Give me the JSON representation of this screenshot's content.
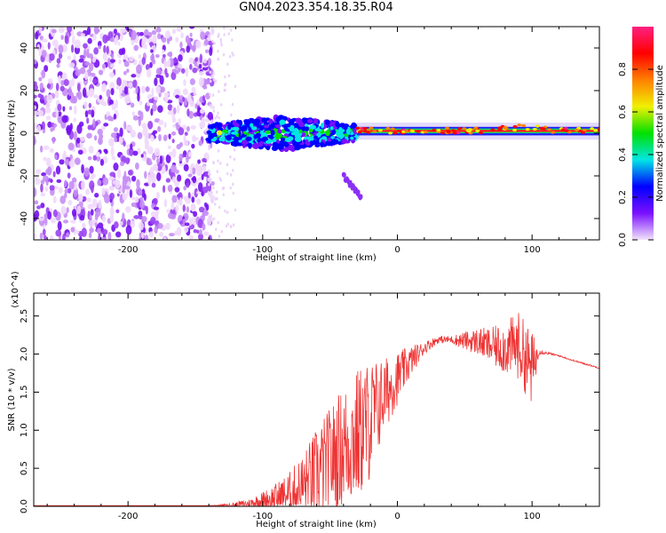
{
  "title": "GN04.2023.354.18.35.R04",
  "chart_data": [
    {
      "type": "heatmap",
      "title": "GN04.2023.354.18.35.R04",
      "xlabel": "Height of straight line (km)",
      "ylabel": "Frequency (Hz)",
      "xlim": [
        -270,
        150
      ],
      "ylim": [
        -50,
        50
      ],
      "xticks": [
        -200,
        -100,
        0,
        100
      ],
      "xtick_labels": [
        "-200",
        "-100",
        "0",
        "100"
      ],
      "yticks": [
        -40,
        -20,
        0,
        20,
        40
      ],
      "ytick_labels": [
        "-40",
        "-20",
        "0",
        "20",
        "40"
      ],
      "colorbar": {
        "label": "Normalized spectral amplitude",
        "range": [
          0,
          1
        ],
        "ticks": [
          0.0,
          0.2,
          0.4,
          0.6,
          0.8
        ],
        "tick_labels": [
          "0.0",
          "0.2",
          "0.4",
          "0.6",
          "0.8"
        ],
        "colors": [
          "#f2e4fa",
          "#7a10ff",
          "#0000ff",
          "#00e5e5",
          "#00e000",
          "#f0f000",
          "#ff8000",
          "#ff0000",
          "#ff2080"
        ]
      },
      "description_regions": [
        {
          "x_range": [
            -270,
            -137
          ],
          "freq_range": [
            -50,
            50
          ],
          "amplitude": "low",
          "pattern": "speckle"
        },
        {
          "x_range": [
            -140,
            -30
          ],
          "freq_range": [
            -8,
            8
          ],
          "amplitude": "medium",
          "pattern": "broadband"
        },
        {
          "x_range": [
            -30,
            150
          ],
          "freq_range": [
            0,
            2
          ],
          "amplitude": "high",
          "pattern": "narrow line"
        }
      ],
      "streak": {
        "x": [
          -40,
          -27
        ],
        "freq": [
          -20,
          -30
        ]
      }
    },
    {
      "type": "line",
      "xlabel": "Height of straight line (km)",
      "ylabel": "SNR (10 * v/v)",
      "y_multiplier": "(x10^4)",
      "xlim": [
        -270,
        150
      ],
      "ylim": [
        0,
        2.8
      ],
      "xticks": [
        -200,
        -100,
        0,
        100
      ],
      "xtick_labels": [
        "-200",
        "-100",
        "0",
        "100"
      ],
      "yticks": [
        0.0,
        0.5,
        1.0,
        1.5,
        2.0,
        2.5
      ],
      "ytick_labels": [
        "0.0",
        "0.5",
        "1.0",
        "1.5",
        "2.0",
        "2.5"
      ],
      "series": [
        {
          "color": "#ee3333",
          "x": [
            -270,
            -240,
            -200,
            -160,
            -140,
            -125,
            -110,
            -100,
            -90,
            -80,
            -70,
            -60,
            -50,
            -40,
            -30,
            -20,
            -10,
            0,
            10,
            20,
            30,
            40,
            50,
            60,
            70,
            80,
            90,
            100,
            105,
            110,
            120,
            130,
            140,
            150
          ],
          "y": [
            0.01,
            0.01,
            0.01,
            0.01,
            0.01,
            0.02,
            0.05,
            0.1,
            0.15,
            0.22,
            0.35,
            0.55,
            0.75,
            0.95,
            1.1,
            1.3,
            1.55,
            1.75,
            1.95,
            2.1,
            2.2,
            2.2,
            2.2,
            2.2,
            2.15,
            2.15,
            2.2,
            1.9,
            2.05,
            2.02,
            1.98,
            1.92,
            1.87,
            1.82
          ],
          "spread": [
            0,
            0,
            0,
            0,
            0,
            0.02,
            0.06,
            0.12,
            0.2,
            0.3,
            0.45,
            0.6,
            0.7,
            0.8,
            0.9,
            0.8,
            0.5,
            0.35,
            0.2,
            0.08,
            0.05,
            0.05,
            0.12,
            0.18,
            0.25,
            0.35,
            0.45,
            0.5,
            0.05,
            0.02,
            0.01,
            0.01,
            0.01,
            0.01
          ]
        }
      ]
    }
  ]
}
